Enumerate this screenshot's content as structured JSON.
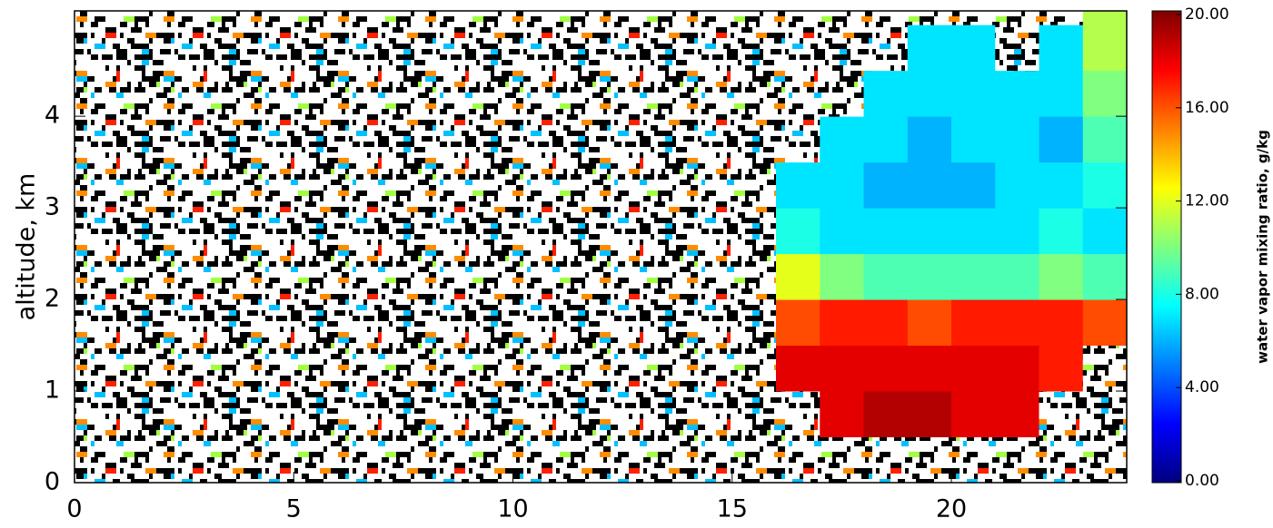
{
  "chart_data": {
    "type": "heatmap",
    "ylabel": "altitude, km",
    "colorbar_label": "water vapor mixing ratio, g/kg",
    "colormap": "jet",
    "x_edges": [
      0,
      1,
      2,
      3,
      4,
      5,
      6,
      7,
      8,
      9,
      10,
      11,
      12,
      13,
      14,
      15,
      16,
      17,
      18,
      19,
      20,
      21,
      22,
      23,
      24
    ],
    "y_edges": [
      0,
      0.5,
      1,
      1.5,
      2,
      2.5,
      3,
      3.5,
      4,
      4.5,
      5,
      5.15
    ],
    "z": [
      [
        null,
        null,
        null,
        null,
        null,
        null,
        null,
        null,
        null,
        null,
        null,
        null,
        null,
        null,
        null,
        null,
        null,
        null,
        null,
        null,
        null,
        null,
        null,
        null
      ],
      [
        null,
        null,
        null,
        null,
        null,
        null,
        null,
        null,
        null,
        null,
        null,
        null,
        null,
        null,
        null,
        null,
        null,
        18,
        19,
        19,
        18,
        18,
        null,
        null
      ],
      [
        null,
        null,
        null,
        null,
        null,
        null,
        null,
        null,
        null,
        null,
        null,
        null,
        null,
        null,
        null,
        null,
        18,
        18,
        18,
        18,
        18,
        18,
        17,
        null
      ],
      [
        null,
        null,
        null,
        null,
        null,
        null,
        null,
        null,
        null,
        null,
        null,
        null,
        null,
        null,
        null,
        null,
        16,
        17,
        17,
        16,
        17,
        17,
        17,
        16
      ],
      [
        null,
        null,
        null,
        null,
        null,
        null,
        null,
        null,
        null,
        null,
        null,
        null,
        null,
        null,
        null,
        null,
        12,
        10,
        9,
        9,
        9,
        9,
        10,
        9
      ],
      [
        null,
        null,
        null,
        null,
        null,
        null,
        null,
        null,
        null,
        null,
        null,
        null,
        null,
        null,
        null,
        null,
        8,
        7,
        7,
        7,
        7,
        7,
        8,
        7
      ],
      [
        null,
        null,
        null,
        null,
        null,
        null,
        null,
        null,
        null,
        null,
        null,
        null,
        null,
        null,
        null,
        null,
        7,
        7,
        6,
        6,
        6,
        7,
        7,
        8
      ],
      [
        null,
        null,
        null,
        null,
        null,
        null,
        null,
        null,
        null,
        null,
        null,
        null,
        null,
        null,
        null,
        null,
        null,
        7,
        7,
        6,
        7,
        7,
        6,
        9
      ],
      [
        null,
        null,
        null,
        null,
        null,
        null,
        null,
        null,
        null,
        null,
        null,
        null,
        null,
        null,
        null,
        null,
        null,
        null,
        7,
        7,
        7,
        7,
        7,
        10
      ],
      [
        null,
        null,
        null,
        null,
        null,
        null,
        null,
        null,
        null,
        null,
        null,
        null,
        null,
        null,
        null,
        null,
        null,
        null,
        null,
        7,
        7,
        null,
        7,
        11
      ],
      [
        null,
        null,
        null,
        null,
        null,
        null,
        null,
        null,
        null,
        null,
        null,
        null,
        null,
        null,
        null,
        null,
        null,
        null,
        null,
        null,
        null,
        null,
        null,
        11
      ]
    ],
    "xlim": [
      0,
      24
    ],
    "xticks": [
      0,
      5,
      10,
      15,
      20
    ],
    "ylim": [
      0,
      5.15
    ],
    "yticks": [
      0,
      1,
      2,
      3,
      4
    ],
    "zlim": [
      0,
      20
    ],
    "zticks": [
      {
        "value": 0,
        "label": "0.00"
      },
      {
        "value": 4,
        "label": "4.00"
      },
      {
        "value": 8,
        "label": "8.00"
      },
      {
        "value": 12,
        "label": "12.00"
      },
      {
        "value": 16,
        "label": "16.00"
      },
      {
        "value": 20,
        "label": "20.00"
      }
    ]
  }
}
